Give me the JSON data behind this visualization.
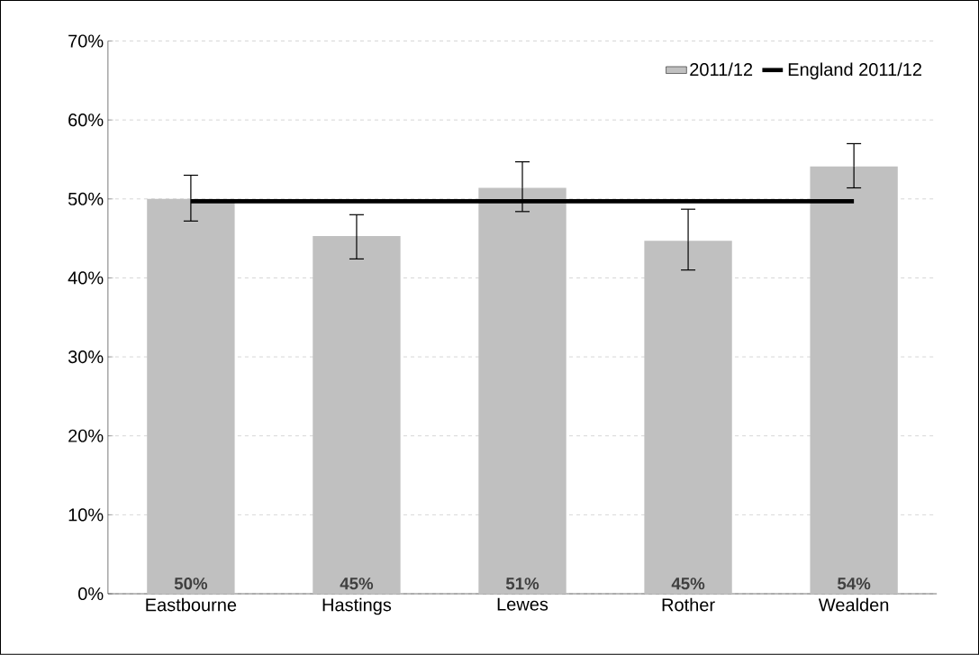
{
  "chart_data": {
    "type": "bar",
    "categories": [
      "Eastbourne",
      "Hastings",
      "Lewes",
      "Rother",
      "Wealden"
    ],
    "series": [
      {
        "name": "2011/12",
        "color": "#c0c0c0",
        "values": [
          50,
          45.3,
          51.4,
          44.7,
          54.1
        ],
        "errors": [
          [
            47.2,
            53.0
          ],
          [
            42.4,
            48.0
          ],
          [
            48.4,
            54.7
          ],
          [
            41.0,
            48.7
          ],
          [
            51.4,
            57.0
          ]
        ],
        "value_labels": [
          "50%",
          "45%",
          "51%",
          "45%",
          "54%"
        ]
      },
      {
        "name": "England 2011/12",
        "type": "line",
        "color": "#000000",
        "values": [
          49.7,
          49.7,
          49.7,
          49.7,
          49.7
        ]
      }
    ],
    "ylim": [
      0,
      70
    ],
    "yticks": [
      {
        "value": 0,
        "label": "0%"
      },
      {
        "value": 10,
        "label": "10%"
      },
      {
        "value": 20,
        "label": "20%"
      },
      {
        "value": 30,
        "label": "30%"
      },
      {
        "value": 40,
        "label": "40%"
      },
      {
        "value": 50,
        "label": "50%"
      },
      {
        "value": 60,
        "label": "60%"
      },
      {
        "value": 70,
        "label": "70%"
      }
    ],
    "grid": "y",
    "legend": "top right",
    "line_style": "solid",
    "marker": "none"
  }
}
